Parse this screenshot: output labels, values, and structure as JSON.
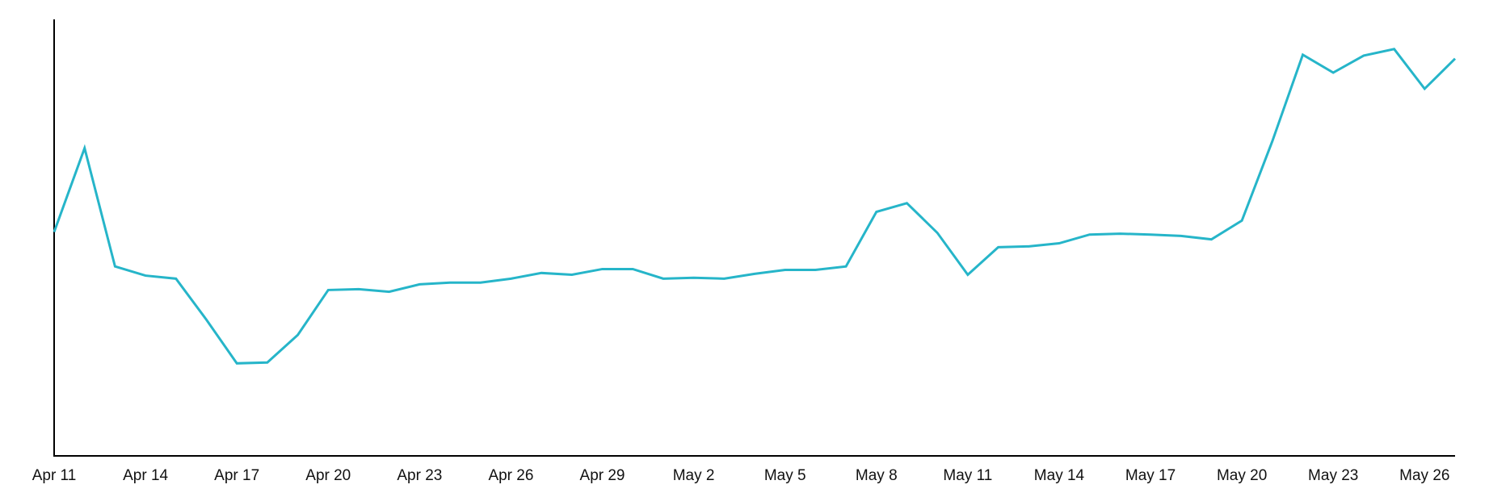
{
  "chart_data": {
    "type": "line",
    "categories": [
      "Apr 11",
      null,
      null,
      "Apr 14",
      null,
      null,
      "Apr 17",
      null,
      null,
      "Apr 20",
      null,
      null,
      "Apr 23",
      null,
      null,
      "Apr 26",
      null,
      null,
      "Apr 29",
      null,
      null,
      "May 2",
      null,
      null,
      "May 5",
      null,
      null,
      "May 8",
      null,
      null,
      "May 11",
      null,
      null,
      "May 14",
      null,
      null,
      "May 17",
      null,
      null,
      "May 20",
      null,
      null,
      "May 23",
      null,
      null,
      "May 26",
      null
    ],
    "values": [
      51.3,
      70.5,
      43.4,
      41.3,
      40.6,
      31.2,
      21.2,
      21.4,
      27.7,
      38.0,
      38.2,
      37.6,
      39.3,
      39.7,
      39.7,
      40.6,
      41.9,
      41.5,
      42.8,
      42.8,
      40.6,
      40.8,
      40.6,
      41.7,
      42.6,
      42.6,
      43.4,
      55.9,
      57.9,
      51.1,
      41.5,
      47.8,
      48.0,
      48.7,
      50.7,
      50.9,
      50.7,
      50.4,
      49.6,
      53.9,
      72.1,
      91.9,
      87.8,
      91.7,
      93.2,
      84.1,
      91.0
    ],
    "color": "#26b5c9",
    "ylim": [
      0,
      100
    ]
  }
}
